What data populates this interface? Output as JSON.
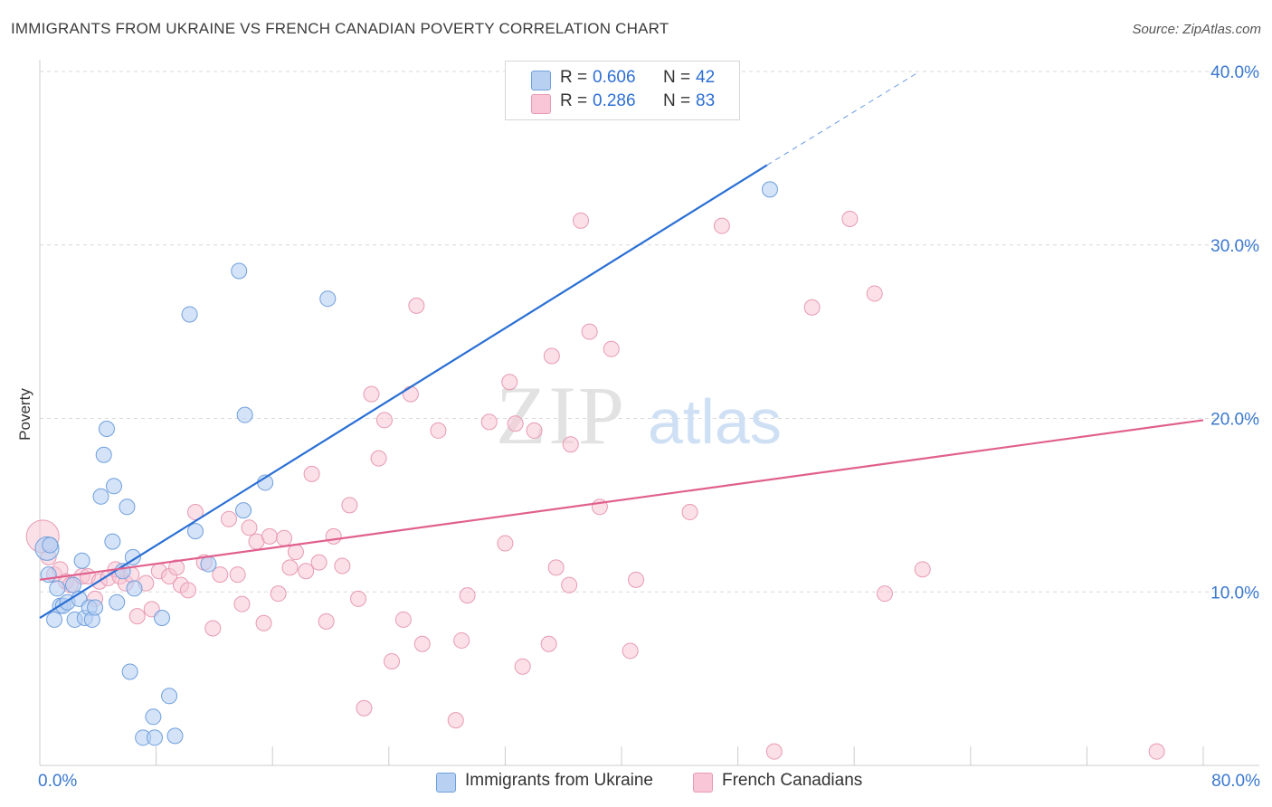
{
  "title": "IMMIGRANTS FROM UKRAINE VS FRENCH CANADIAN POVERTY CORRELATION CHART",
  "source": "Source: ZipAtlas.com",
  "watermark": {
    "zip": "ZIP",
    "atlas": "atlas"
  },
  "legend_top": [
    {
      "r_label": "R =",
      "r_value": "0.606",
      "n_label": "N =",
      "n_value": "42"
    },
    {
      "r_label": "R =",
      "r_value": "0.286",
      "n_label": "N =",
      "n_value": "83"
    }
  ],
  "legend_bottom": [
    "Immigrants from Ukraine",
    "French Canadians"
  ],
  "colors": {
    "ukraine_fill": "#b8d1f3",
    "ukraine_stroke": "#6f9fdc",
    "ukraine_line": "#2a6fd4",
    "french_fill": "#f8c6d6",
    "french_stroke": "#e79ab4",
    "french_line": "#e0608e",
    "tick_text": "#3a78d0",
    "grid": "#d9d9d9"
  },
  "chart_data": {
    "type": "scatter",
    "title": "IMMIGRANTS FROM UKRAINE VS FRENCH CANADIAN POVERTY CORRELATION CHART",
    "xlabel": "",
    "ylabel": "Poverty",
    "xlim": [
      0,
      80
    ],
    "ylim": [
      0,
      40
    ],
    "x_tick_labels": [
      "0.0%",
      "80.0%"
    ],
    "y_tick_labels": [
      "10.0%",
      "20.0%",
      "30.0%",
      "40.0%"
    ],
    "y_ticks": [
      10,
      20,
      30,
      40
    ],
    "x_minor_ticks": [
      8,
      16,
      24,
      32,
      40,
      48,
      56,
      64,
      72,
      80
    ],
    "grid": "horizontal dashed",
    "legend_position": "top-center",
    "series": [
      {
        "name": "Immigrants from Ukraine",
        "R": 0.606,
        "N": 42,
        "points": [
          [
            0.5,
            12.5
          ],
          [
            0.6,
            11.0
          ],
          [
            0.7,
            12.7
          ],
          [
            1.0,
            8.4
          ],
          [
            1.2,
            10.2
          ],
          [
            1.4,
            9.2
          ],
          [
            1.6,
            9.2
          ],
          [
            1.9,
            9.4
          ],
          [
            2.3,
            10.4
          ],
          [
            2.4,
            8.4
          ],
          [
            2.7,
            9.6
          ],
          [
            2.9,
            11.8
          ],
          [
            3.1,
            8.5
          ],
          [
            3.4,
            9.1
          ],
          [
            3.6,
            8.4
          ],
          [
            3.8,
            9.1
          ],
          [
            4.2,
            15.5
          ],
          [
            4.4,
            17.9
          ],
          [
            4.6,
            19.4
          ],
          [
            5.0,
            12.9
          ],
          [
            5.1,
            16.1
          ],
          [
            5.3,
            9.4
          ],
          [
            5.7,
            11.2
          ],
          [
            6.0,
            14.9
          ],
          [
            6.2,
            5.4
          ],
          [
            6.4,
            12.0
          ],
          [
            6.5,
            10.2
          ],
          [
            7.1,
            1.6
          ],
          [
            7.8,
            2.8
          ],
          [
            7.9,
            1.6
          ],
          [
            8.4,
            8.5
          ],
          [
            8.9,
            4.0
          ],
          [
            9.3,
            1.7
          ],
          [
            10.3,
            26.0
          ],
          [
            10.7,
            13.5
          ],
          [
            11.6,
            11.6
          ],
          [
            13.7,
            28.5
          ],
          [
            14.0,
            14.7
          ],
          [
            14.1,
            20.2
          ],
          [
            15.5,
            16.3
          ],
          [
            19.8,
            26.9
          ],
          [
            50.2,
            33.2
          ]
        ]
      },
      {
        "name": "French Canadians",
        "R": 0.286,
        "N": 83,
        "points": [
          [
            0.2,
            13.2
          ],
          [
            0.6,
            12.0
          ],
          [
            1.0,
            11.0
          ],
          [
            1.4,
            11.3
          ],
          [
            1.8,
            10.6
          ],
          [
            2.1,
            10.4
          ],
          [
            2.9,
            10.9
          ],
          [
            3.3,
            10.9
          ],
          [
            3.8,
            9.6
          ],
          [
            4.1,
            10.6
          ],
          [
            4.7,
            10.8
          ],
          [
            5.2,
            11.3
          ],
          [
            5.5,
            10.9
          ],
          [
            5.9,
            10.5
          ],
          [
            6.3,
            11.0
          ],
          [
            6.7,
            8.6
          ],
          [
            7.3,
            10.5
          ],
          [
            7.7,
            9.0
          ],
          [
            8.2,
            11.2
          ],
          [
            8.9,
            10.9
          ],
          [
            9.4,
            11.4
          ],
          [
            9.7,
            10.4
          ],
          [
            10.2,
            10.1
          ],
          [
            10.7,
            14.6
          ],
          [
            11.3,
            11.7
          ],
          [
            11.9,
            7.9
          ],
          [
            12.4,
            11.0
          ],
          [
            13.0,
            14.2
          ],
          [
            13.6,
            11.0
          ],
          [
            13.9,
            9.3
          ],
          [
            14.4,
            13.7
          ],
          [
            14.9,
            12.9
          ],
          [
            15.4,
            8.2
          ],
          [
            15.8,
            13.2
          ],
          [
            16.4,
            9.9
          ],
          [
            16.8,
            13.1
          ],
          [
            17.2,
            11.4
          ],
          [
            17.6,
            12.3
          ],
          [
            18.3,
            11.2
          ],
          [
            18.7,
            16.8
          ],
          [
            19.2,
            11.7
          ],
          [
            19.7,
            8.3
          ],
          [
            20.2,
            13.2
          ],
          [
            20.8,
            11.5
          ],
          [
            21.3,
            15.0
          ],
          [
            21.9,
            9.6
          ],
          [
            22.3,
            3.3
          ],
          [
            22.8,
            21.4
          ],
          [
            23.3,
            17.7
          ],
          [
            23.7,
            19.9
          ],
          [
            24.2,
            6.0
          ],
          [
            25.0,
            8.4
          ],
          [
            25.5,
            21.4
          ],
          [
            25.9,
            26.5
          ],
          [
            26.3,
            7.0
          ],
          [
            27.4,
            19.3
          ],
          [
            28.6,
            2.6
          ],
          [
            29.0,
            7.2
          ],
          [
            29.4,
            9.8
          ],
          [
            30.9,
            19.8
          ],
          [
            32.0,
            12.8
          ],
          [
            32.3,
            22.1
          ],
          [
            32.7,
            19.7
          ],
          [
            33.2,
            5.7
          ],
          [
            34.0,
            19.3
          ],
          [
            35.0,
            7.0
          ],
          [
            35.2,
            23.6
          ],
          [
            35.5,
            11.4
          ],
          [
            36.4,
            10.4
          ],
          [
            36.5,
            18.5
          ],
          [
            37.2,
            31.4
          ],
          [
            37.8,
            25.0
          ],
          [
            38.5,
            14.9
          ],
          [
            39.3,
            24.0
          ],
          [
            40.6,
            6.6
          ],
          [
            41.0,
            10.7
          ],
          [
            44.7,
            14.6
          ],
          [
            46.9,
            31.1
          ],
          [
            50.5,
            0.8
          ],
          [
            53.1,
            26.4
          ],
          [
            55.7,
            31.5
          ],
          [
            57.4,
            27.2
          ],
          [
            58.1,
            9.9
          ],
          [
            60.7,
            11.3
          ],
          [
            76.8,
            0.8
          ]
        ]
      }
    ],
    "trendlines": [
      {
        "series": "Immigrants from Ukraine",
        "x": [
          0,
          50.0
        ],
        "y": [
          8.5,
          34.6
        ],
        "extension_dashed_to": [
          60.5,
          40.0
        ]
      },
      {
        "series": "French Canadians",
        "x": [
          0,
          80
        ],
        "y": [
          10.7,
          19.9
        ]
      }
    ]
  }
}
